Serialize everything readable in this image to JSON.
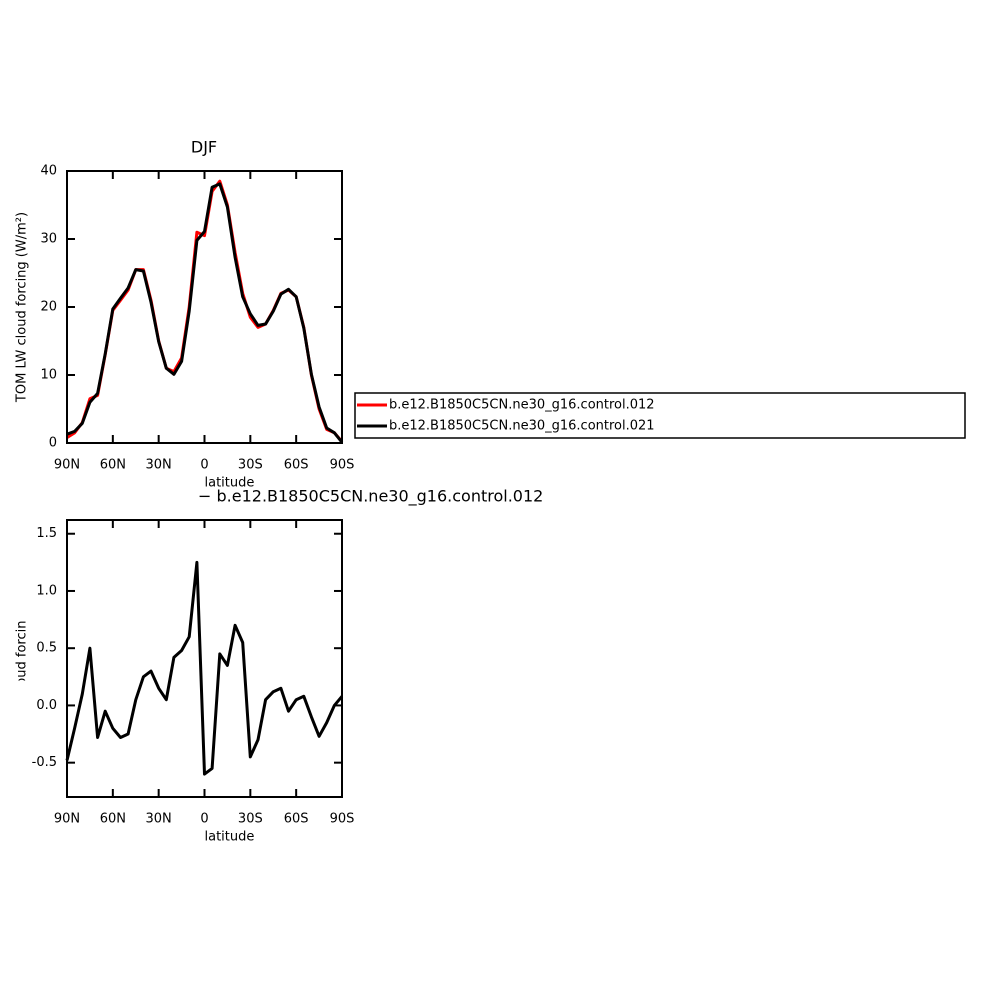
{
  "chart_data": [
    {
      "type": "line",
      "title": "DJF",
      "x_label": "latitude",
      "y_label": "TOM LW cloud forcing (W/m²)",
      "x": [
        90,
        85,
        80,
        75,
        70,
        65,
        60,
        55,
        50,
        45,
        40,
        35,
        30,
        25,
        20,
        15,
        10,
        5,
        0,
        -5,
        -10,
        -15,
        -20,
        -25,
        -30,
        -35,
        -40,
        -45,
        -50,
        -55,
        -60,
        -65,
        -70,
        -75,
        -80,
        -85,
        -90
      ],
      "series": [
        {
          "name": "b.e12.B1850C5CN.ne30_g16.control.012",
          "color": "#ff0000",
          "values": [
            0.8,
            1.5,
            3,
            6.5,
            7,
            13,
            19.5,
            21,
            22.5,
            25.5,
            25.5,
            21,
            15,
            11,
            10.5,
            12.5,
            20,
            31,
            30.5,
            37,
            38.5,
            35,
            28,
            22,
            18.5,
            17,
            17.5,
            19.5,
            22,
            22.5,
            21.5,
            17,
            10,
            5,
            2,
            1.5,
            0.2
          ]
        },
        {
          "name": "b.e12.B1850C5CN.ne30_g16.control.021",
          "color": "#000000",
          "values": [
            1.3,
            1.7,
            2.9,
            6.0,
            7.3,
            13.1,
            19.7,
            21.3,
            22.8,
            25.5,
            25.3,
            20.7,
            14.9,
            11.0,
            10.1,
            12.0,
            19.4,
            29.8,
            31.1,
            37.6,
            38.1,
            34.7,
            27.3,
            21.5,
            19.0,
            17.3,
            17.5,
            19.4,
            21.9,
            22.6,
            21.5,
            16.9,
            10.1,
            5.3,
            2.2,
            1.5,
            0.1
          ]
        }
      ],
      "xlim": [
        90,
        -90
      ],
      "xticks": [
        {
          "value": 90,
          "label": "90N"
        },
        {
          "value": 60,
          "label": "60N"
        },
        {
          "value": 30,
          "label": "30N"
        },
        0,
        {
          "value": -30,
          "label": "30S"
        },
        {
          "value": -60,
          "label": "60S"
        },
        {
          "value": -90,
          "label": "90S"
        }
      ],
      "ylim": [
        0,
        40
      ],
      "yticks": [
        0,
        10,
        20,
        30,
        40
      ]
    },
    {
      "type": "line",
      "title": "− b.e12.B1850C5CN.ne30_g16.control.012",
      "x_label": "latitude",
      "y_label": "TOM LW cloud forcing (W/m )",
      "x": [
        90,
        85,
        80,
        75,
        70,
        65,
        60,
        55,
        50,
        45,
        40,
        35,
        30,
        25,
        20,
        15,
        10,
        5,
        0,
        -5,
        -10,
        -15,
        -20,
        -25,
        -30,
        -35,
        -40,
        -45,
        -50,
        -55,
        -60,
        -65,
        -70,
        -75,
        -80,
        -85,
        -90
      ],
      "series": [
        {
          "color": "#000000",
          "values": [
            -0.48,
            -0.2,
            0.1,
            0.5,
            -0.28,
            -0.05,
            -0.2,
            -0.28,
            -0.25,
            0.05,
            0.25,
            0.3,
            0.15,
            0.05,
            0.42,
            0.48,
            0.6,
            1.25,
            -0.6,
            -0.55,
            0.45,
            0.35,
            0.7,
            0.55,
            -0.45,
            -0.3,
            0.05,
            0.12,
            0.15,
            -0.05,
            0.05,
            0.08,
            -0.1,
            -0.27,
            -0.15,
            0.0,
            0.08
          ]
        }
      ],
      "xlim": [
        90,
        -90
      ],
      "xticks": [
        {
          "value": 90,
          "label": "90N"
        },
        {
          "value": 60,
          "label": "60N"
        },
        {
          "value": 30,
          "label": "30N"
        },
        0,
        {
          "value": -30,
          "label": "30S"
        },
        {
          "value": -60,
          "label": "60S"
        },
        {
          "value": -90,
          "label": "90S"
        }
      ],
      "ylim": [
        -0.8,
        1.62
      ],
      "yticks": [
        {
          "value": -0.5,
          "label": "-0.5"
        },
        {
          "value": 0,
          "label": "0.0"
        },
        {
          "value": 0.5,
          "label": "0.5"
        },
        {
          "value": 1,
          "label": "1.0"
        },
        {
          "value": 1.5,
          "label": "1.5"
        }
      ]
    }
  ]
}
